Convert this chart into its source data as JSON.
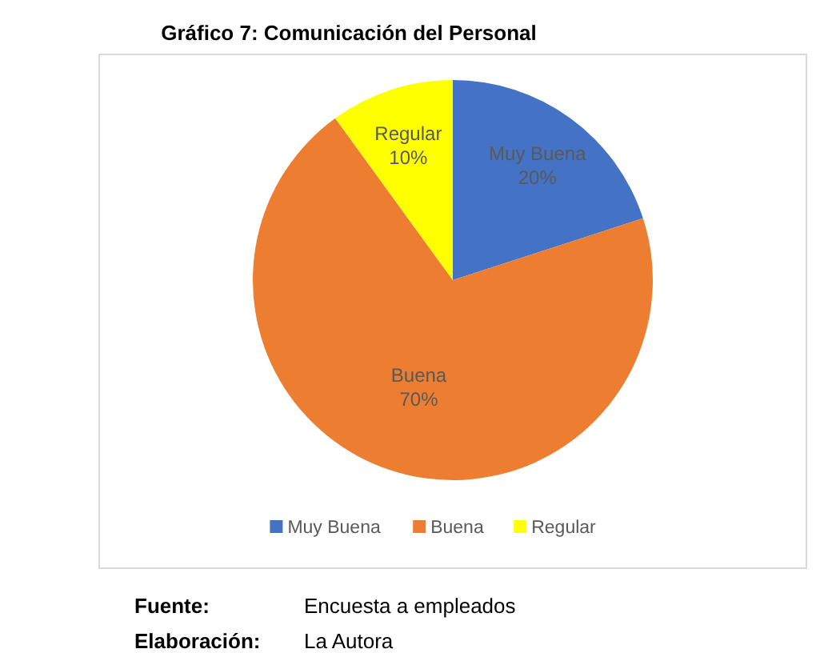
{
  "chart_data": {
    "type": "pie",
    "title": "Gráfico 7: Comunicación del Personal",
    "categories": [
      "Muy Buena",
      "Buena",
      "Regular"
    ],
    "values": [
      20,
      70,
      10
    ],
    "value_labels": [
      "20%",
      "70%",
      "10%"
    ],
    "colors": [
      "#4472c4",
      "#ed7d31",
      "#ffff00"
    ],
    "legend": "bottom",
    "annotations": [
      "Fuente: Encuesta a empleados",
      "Elaboración: La Autora"
    ]
  }
}
